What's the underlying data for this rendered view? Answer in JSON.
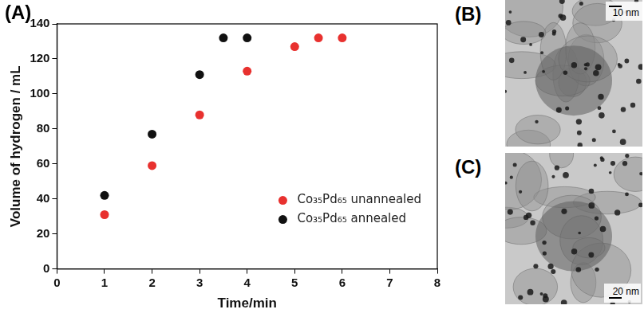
{
  "chart_data": {
    "type": "scatter",
    "panel_label": "(A)",
    "x_label": "Time/min",
    "y_label": "Volume of hydrogen / mL",
    "xlim": [
      0,
      8
    ],
    "xticks": [
      0,
      1,
      2,
      3,
      4,
      5,
      6,
      7,
      8
    ],
    "ylim": [
      0,
      140
    ],
    "yticks": [
      0,
      20,
      40,
      60,
      80,
      100,
      120,
      140
    ],
    "grid": false,
    "legend": "lower right",
    "marker": "circle",
    "series": [
      {
        "name": "Co₃₅Pd₆₅ unannealed",
        "color": "#e8312f",
        "x": [
          1,
          2,
          3,
          4,
          5,
          5.5,
          6
        ],
        "values": [
          31,
          59,
          88,
          113,
          127,
          132,
          132
        ]
      },
      {
        "name": "Co₃₅Pd₆₅ annealed",
        "color": "#111111",
        "x": [
          1,
          2,
          3,
          3.5,
          4
        ],
        "values": [
          42,
          77,
          111,
          132,
          132
        ]
      }
    ]
  },
  "micrographs": [
    {
      "panel_label": "(B)",
      "scale_bar": "10 nm"
    },
    {
      "panel_label": "(C)",
      "scale_bar": "20 nm"
    }
  ]
}
